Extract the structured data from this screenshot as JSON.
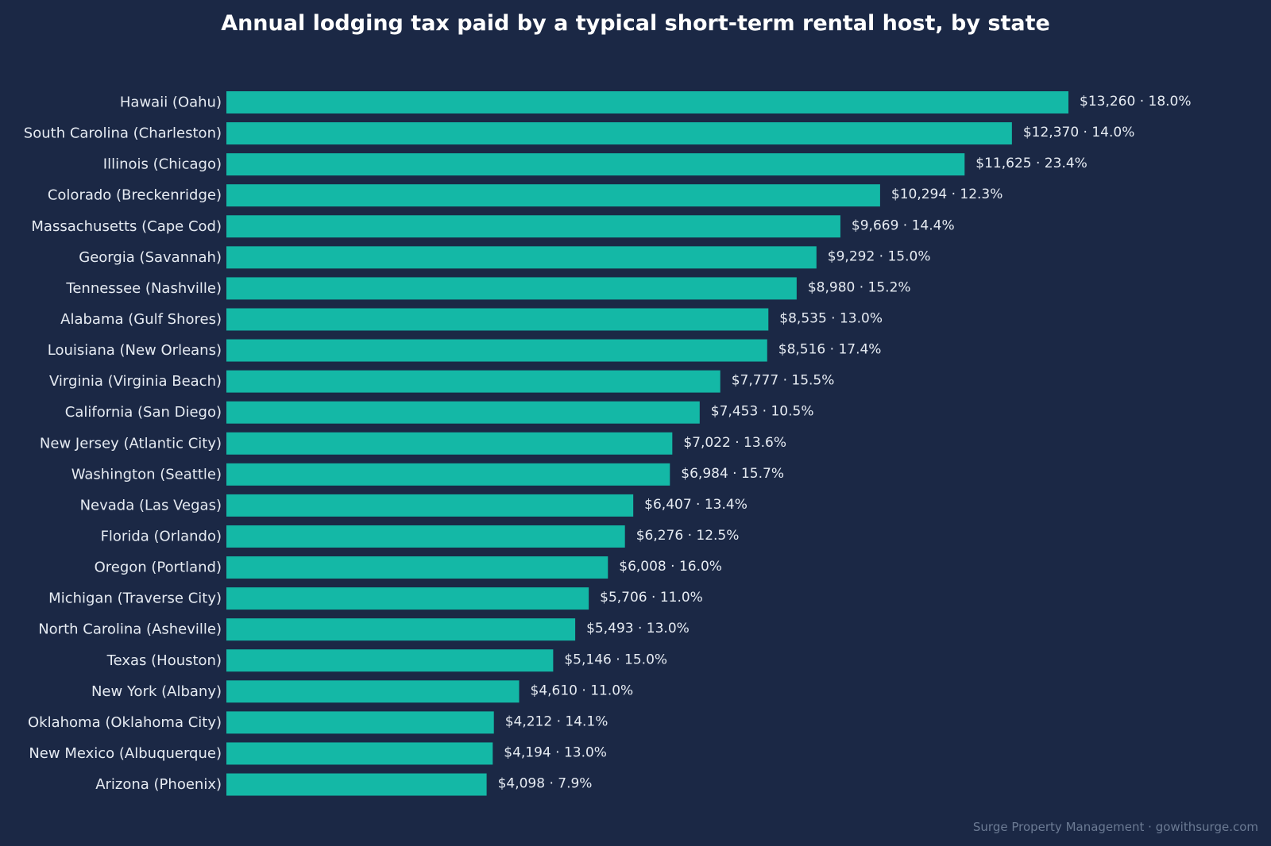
{
  "chart_data": {
    "type": "bar",
    "orientation": "horizontal",
    "title": "Annual lodging tax paid by a typical short-term rental host, by state",
    "categories": [
      "Hawaii (Oahu)",
      "South Carolina (Charleston)",
      "Illinois (Chicago)",
      "Colorado (Breckenridge)",
      "Massachusetts (Cape Cod)",
      "Georgia (Savannah)",
      "Tennessee (Nashville)",
      "Alabama (Gulf Shores)",
      "Louisiana (New Orleans)",
      "Virginia (Virginia Beach)",
      "California (San Diego)",
      "New Jersey (Atlantic City)",
      "Washington (Seattle)",
      "Nevada (Las Vegas)",
      "Florida (Orlando)",
      "Oregon (Portland)",
      "Michigan (Traverse City)",
      "North Carolina (Asheville)",
      "Texas (Houston)",
      "New York (Albany)",
      "Oklahoma (Oklahoma City)",
      "New Mexico (Albuquerque)",
      "Arizona (Phoenix)"
    ],
    "values": [
      13260,
      12370,
      11625,
      10294,
      9669,
      9292,
      8980,
      8535,
      8516,
      7777,
      7453,
      7022,
      6984,
      6407,
      6276,
      6008,
      5706,
      5493,
      5146,
      4610,
      4212,
      4194,
      4098
    ],
    "data_labels": [
      "$13,260 · 18.0%",
      "$12,370 · 14.0%",
      "$11,625 · 23.4%",
      "$10,294 · 12.3%",
      "$9,669 · 14.4%",
      "$9,292 · 15.0%",
      "$8,980 · 15.2%",
      "$8,535 · 13.0%",
      "$8,516 · 17.4%",
      "$7,777 · 15.5%",
      "$7,453 · 10.5%",
      "$7,022 · 13.6%",
      "$6,984 · 15.7%",
      "$6,407 · 13.4%",
      "$6,276 · 12.5%",
      "$6,008 · 16.0%",
      "$5,706 · 11.0%",
      "$5,493 · 13.0%",
      "$5,146 · 15.0%",
      "$4,610 · 11.0%",
      "$4,212 · 14.1%",
      "$4,194 · 13.0%",
      "$4,098 · 7.9%"
    ],
    "xlim": [
      0,
      13260
    ],
    "grid": false,
    "legend": "none",
    "colors": {
      "background": "#1b2845",
      "bar": "#14b8a6",
      "text": "#ffffff",
      "label_text": "#e6ebf2",
      "footer_text": "#6b7a93"
    }
  },
  "footer": "Surge Property Management · gowithsurge.com"
}
